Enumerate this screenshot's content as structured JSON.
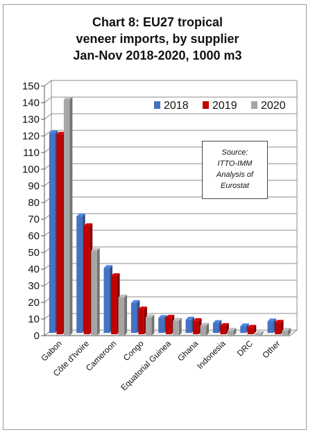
{
  "chart_data": {
    "type": "bar",
    "title": [
      "Chart 8: EU27 tropical",
      "veneer imports, by supplier",
      "Jan-Nov 2018-2020, 1000 m3"
    ],
    "categories": [
      "Gabon",
      "Côte d'Ivoire",
      "Cameroon",
      "Congo",
      "Equatorial Guinea",
      "Ghana",
      "Indonesia",
      "DRC",
      "Other"
    ],
    "series": [
      {
        "name": "2018",
        "color": "#4472c4",
        "values": [
          120,
          70,
          39,
          18,
          9,
          8,
          6,
          4,
          7
        ]
      },
      {
        "name": "2019",
        "color": "#c00000",
        "values": [
          120,
          65,
          35,
          15,
          10,
          8,
          5,
          4,
          7
        ]
      },
      {
        "name": "2020",
        "color": "#a6a6a6",
        "values": [
          142,
          51,
          23,
          11,
          9,
          6,
          3,
          1,
          3
        ]
      }
    ],
    "ylim": [
      0,
      150
    ],
    "yticks": [
      0,
      10,
      20,
      30,
      40,
      50,
      60,
      70,
      80,
      90,
      100,
      110,
      120,
      130,
      140,
      150
    ],
    "grid": true,
    "legend": "top-right",
    "annotation": [
      "Source:",
      "ITTO-IMM",
      "Analysis of",
      "Eurostat"
    ]
  }
}
